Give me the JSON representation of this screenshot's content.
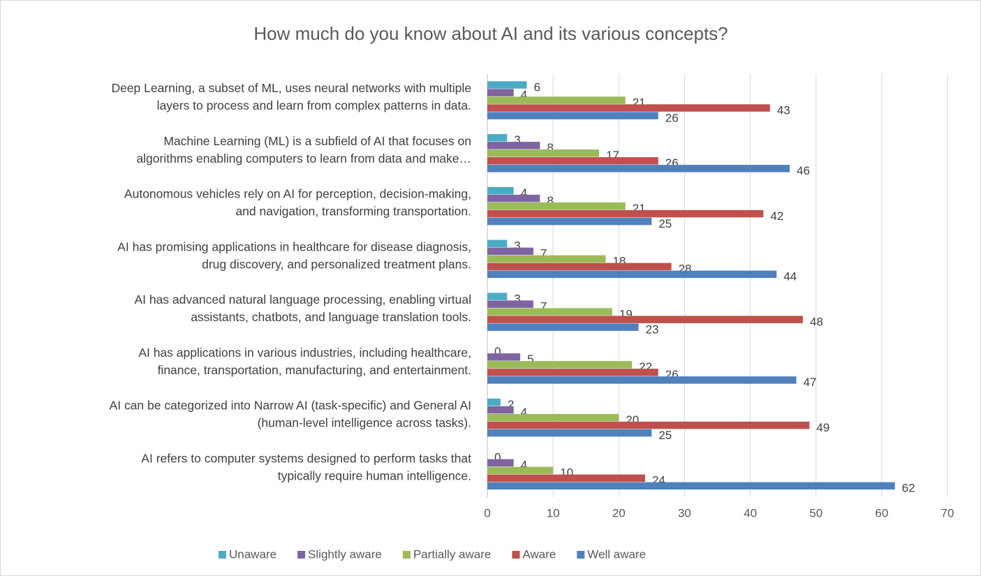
{
  "chart_data": {
    "type": "bar",
    "orientation": "horizontal",
    "title": "How much do you know about AI and its various concepts?",
    "categories": [
      [
        "Deep Learning, a subset of ML, uses neural networks with multiple",
        "layers to process and learn from complex patterns in data."
      ],
      [
        "Machine Learning (ML) is a subfield of AI that focuses on",
        "algorithms enabling computers to learn from data and make…"
      ],
      [
        "Autonomous vehicles rely on AI for perception, decision-making,",
        "and navigation, transforming transportation."
      ],
      [
        "AI has promising applications in healthcare for disease diagnosis,",
        "drug discovery, and personalized treatment plans."
      ],
      [
        "AI has advanced natural language processing, enabling virtual",
        "assistants, chatbots, and language translation tools."
      ],
      [
        "AI has applications in various industries, including healthcare,",
        "finance, transportation, manufacturing, and entertainment."
      ],
      [
        "AI can be categorized into Narrow AI (task-specific) and General AI",
        "(human-level intelligence across tasks)."
      ],
      [
        "AI refers to computer systems designed to perform tasks that",
        "typically require human intelligence."
      ]
    ],
    "series": [
      {
        "name": "Unaware",
        "color": "#4bacc6",
        "values": [
          6,
          3,
          4,
          3,
          3,
          0,
          2,
          0
        ]
      },
      {
        "name": "Slightly aware",
        "color": "#8064a2",
        "values": [
          4,
          8,
          8,
          7,
          7,
          5,
          4,
          4
        ]
      },
      {
        "name": "Partially aware",
        "color": "#9bbb59",
        "values": [
          21,
          17,
          21,
          18,
          19,
          22,
          20,
          10
        ]
      },
      {
        "name": "Aware",
        "color": "#c0504d",
        "values": [
          43,
          26,
          42,
          28,
          48,
          26,
          49,
          24
        ]
      },
      {
        "name": "Well aware",
        "color": "#4f81bd",
        "values": [
          26,
          46,
          25,
          44,
          23,
          47,
          25,
          62
        ]
      }
    ],
    "xlim": [
      0,
      70
    ],
    "xticks": [
      0,
      10,
      20,
      30,
      40,
      50,
      60,
      70
    ],
    "grid": true,
    "data_labels": true,
    "legend": "bottom"
  }
}
